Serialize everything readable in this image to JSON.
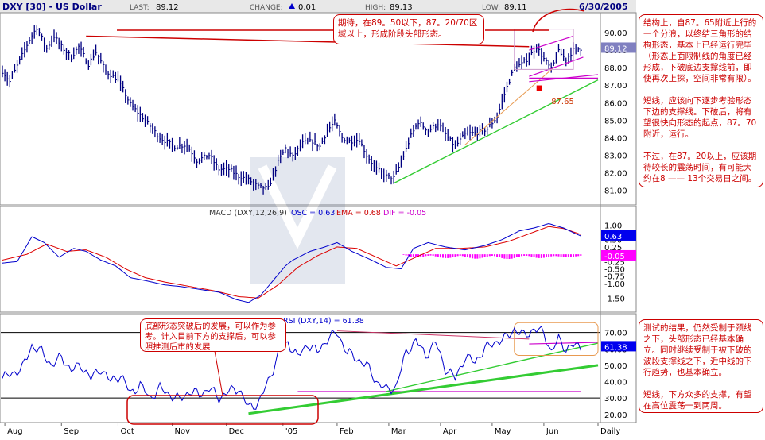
{
  "header": {
    "title": "DXY [30] - US Dollar",
    "last_label": "LAST:",
    "last_value": "89.12",
    "change_label": "CHANGE:",
    "change_value": "0.01",
    "high_label": "HIGH:",
    "high_value": "89.13",
    "low_label": "LOW:",
    "low_value": "89.11",
    "date": "6/30/2005"
  },
  "notes": {
    "top_callout": "期待，在89。50以下，87。20/70区域以上，形成阶段头部形态。",
    "right_top": "结构上，自87。65附近上行的一个分浪，以终结三角形的结构形态，基本上已经运行完毕（形态上面限制线的角度已经形成，下破底边支撑线前，即使再次上探，空间非常有限）。\n\n短线，应该向下逐步考验形态下边的支撑线。下破后，将有望很快向形态的起点，87。70附近，运行。\n\n不过，在87。20以上，应该期待较长的震荡时间，有可能大约在8 —— 13个交易日之间。",
    "right_bottom": "测试的结果，仍然受制于颈线之下，头部形态已经基本确立。同时继续受制于被下破的波段支撑线之下，近中线的下行趋势，也基本确立。\n\n短线，下方众多的支撑，有望在高位震荡一到两周。",
    "rsi_callout": "底部形态突破后的发展，可以作为参考。计入目前下方的支撑后，可以参照推测后市的发展",
    "level_label": "87.65"
  },
  "chart_data": [
    {
      "type": "line",
      "name": "price",
      "title": "DXY [30] - US Dollar",
      "ylim": [
        80.3,
        91.0
      ],
      "y_ticks": [
        81.0,
        82.0,
        83.0,
        84.0,
        85.0,
        86.0,
        87.0,
        88.0,
        89.0,
        90.0
      ],
      "y_tick_labels": [
        "81.00",
        "82.00",
        "83.00",
        "84.00",
        "85.00",
        "86.00",
        "87.00",
        "88.00",
        "89.00",
        "90.00"
      ],
      "last_value": 89.12,
      "last_value_label": "89.12",
      "x_labels": [
        "Aug",
        "Sep",
        "Oct",
        "Nov",
        "Dec",
        "'05",
        "Feb",
        "Mar",
        "Apr",
        "May",
        "Jun",
        "Daily"
      ],
      "x_label_positions": [
        1,
        24,
        47,
        69,
        91,
        114,
        136,
        157,
        178,
        199,
        220,
        242
      ],
      "bars": 235,
      "close_anchors": [
        [
          0,
          87.8
        ],
        [
          3,
          87.2
        ],
        [
          7,
          88.4
        ],
        [
          11,
          89.6
        ],
        [
          14,
          90.3
        ],
        [
          18,
          89.1
        ],
        [
          21,
          89.8
        ],
        [
          24,
          89.2
        ],
        [
          28,
          88.6
        ],
        [
          31,
          89.2
        ],
        [
          35,
          88.2
        ],
        [
          38,
          88.9
        ],
        [
          42,
          87.8
        ],
        [
          47,
          87.3
        ],
        [
          52,
          85.9
        ],
        [
          58,
          85.0
        ],
        [
          64,
          84.0
        ],
        [
          70,
          83.5
        ],
        [
          75,
          83.6
        ],
        [
          79,
          82.7
        ],
        [
          84,
          83.0
        ],
        [
          88,
          82.2
        ],
        [
          92,
          82.2
        ],
        [
          96,
          81.8
        ],
        [
          100,
          81.6
        ],
        [
          104,
          81.2
        ],
        [
          108,
          81.1
        ],
        [
          112,
          82.6
        ],
        [
          115,
          83.4
        ],
        [
          118,
          82.9
        ],
        [
          122,
          83.7
        ],
        [
          126,
          83.8
        ],
        [
          129,
          83.5
        ],
        [
          132,
          84.4
        ],
        [
          135,
          84.9
        ],
        [
          138,
          84.0
        ],
        [
          141,
          83.8
        ],
        [
          145,
          83.9
        ],
        [
          148,
          83.0
        ],
        [
          152,
          82.2
        ],
        [
          156,
          81.8
        ],
        [
          159,
          81.7
        ],
        [
          162,
          82.6
        ],
        [
          166,
          84.1
        ],
        [
          169,
          84.9
        ],
        [
          173,
          84.4
        ],
        [
          177,
          84.8
        ],
        [
          181,
          84.0
        ],
        [
          184,
          83.5
        ],
        [
          188,
          84.2
        ],
        [
          193,
          84.3
        ],
        [
          197,
          84.5
        ],
        [
          201,
          85.2
        ],
        [
          205,
          86.9
        ],
        [
          208,
          88.0
        ],
        [
          211,
          88.2
        ],
        [
          214,
          88.6
        ],
        [
          217,
          89.2
        ],
        [
          220,
          88.5
        ],
        [
          223,
          87.9
        ],
        [
          226,
          88.9
        ],
        [
          229,
          88.5
        ],
        [
          232,
          89.0
        ],
        [
          235,
          89.1
        ]
      ],
      "lines": {
        "neckline": [
          [
            34,
            89.8
          ],
          [
            214,
            89.2
          ]
        ],
        "uptrend": [
          [
            159,
            81.4
          ],
          [
            242,
            87.3
          ]
        ],
        "tri_upper": [
          [
            214,
            89.0
          ],
          [
            232,
            89.8
          ]
        ],
        "tri_lower": [
          [
            214,
            87.5
          ],
          [
            236,
            88.6
          ]
        ],
        "support_a": [
          [
            214,
            87.4
          ],
          [
            242,
            87.4
          ]
        ],
        "support_b": [
          [
            214,
            87.2
          ],
          [
            242,
            87.6
          ]
        ],
        "orange_line": [
          [
            188,
            83.6
          ],
          [
            224,
            88.0
          ]
        ],
        "square_marker": [
          218,
          86.85
        ],
        "level_label_position": [
          223,
          86.1
        ]
      }
    },
    {
      "type": "line",
      "name": "macd",
      "title": "MACD (DXY,12,26,9)",
      "osc_label": "OSC = 0.63",
      "ema_label": "EMA = 0.68",
      "dif_label": "DIF = -0.05",
      "ylim": [
        -1.9,
        1.2
      ],
      "y_ticks": [
        1.0,
        0.75,
        0.5,
        0.25,
        -0.25,
        -0.5,
        -0.75,
        -1.0,
        -1.5
      ],
      "y_tick_labels": [
        "1.00",
        "0.75",
        "0.50",
        "0.25",
        "-0.25",
        "-0.50",
        "-0.75",
        "-1.00",
        "-1.50"
      ],
      "osc_last": 0.63,
      "dif_last": -0.05,
      "osc_anchors": [
        [
          0,
          -0.3
        ],
        [
          6,
          -0.25
        ],
        [
          12,
          0.6
        ],
        [
          17,
          0.4
        ],
        [
          23,
          -0.1
        ],
        [
          29,
          0.2
        ],
        [
          34,
          0.1
        ],
        [
          40,
          -0.2
        ],
        [
          46,
          -0.4
        ],
        [
          52,
          -0.8
        ],
        [
          58,
          -0.9
        ],
        [
          66,
          -1.05
        ],
        [
          72,
          -1.1
        ],
        [
          80,
          -1.2
        ],
        [
          88,
          -1.3
        ],
        [
          95,
          -1.55
        ],
        [
          100,
          -1.65
        ],
        [
          105,
          -1.4
        ],
        [
          110,
          -0.9
        ],
        [
          115,
          -0.4
        ],
        [
          118,
          -0.2
        ],
        [
          125,
          0.1
        ],
        [
          131,
          0.25
        ],
        [
          136,
          0.4
        ],
        [
          142,
          0.1
        ],
        [
          150,
          -0.2
        ],
        [
          156,
          -0.45
        ],
        [
          162,
          -0.5
        ],
        [
          167,
          0.2
        ],
        [
          173,
          0.4
        ],
        [
          180,
          0.25
        ],
        [
          188,
          0.15
        ],
        [
          196,
          0.3
        ],
        [
          203,
          0.5
        ],
        [
          210,
          0.8
        ],
        [
          216,
          0.9
        ],
        [
          222,
          1.05
        ],
        [
          228,
          0.9
        ],
        [
          233,
          0.7
        ],
        [
          235,
          0.63
        ]
      ],
      "ema_anchors": [
        [
          0,
          -0.2
        ],
        [
          10,
          0.0
        ],
        [
          18,
          0.35
        ],
        [
          26,
          0.1
        ],
        [
          34,
          0.15
        ],
        [
          42,
          -0.1
        ],
        [
          50,
          -0.5
        ],
        [
          58,
          -0.8
        ],
        [
          66,
          -0.95
        ],
        [
          76,
          -1.1
        ],
        [
          86,
          -1.25
        ],
        [
          96,
          -1.45
        ],
        [
          104,
          -1.5
        ],
        [
          112,
          -1.05
        ],
        [
          120,
          -0.45
        ],
        [
          128,
          -0.05
        ],
        [
          136,
          0.25
        ],
        [
          144,
          0.2
        ],
        [
          152,
          -0.1
        ],
        [
          160,
          -0.4
        ],
        [
          168,
          -0.1
        ],
        [
          176,
          0.2
        ],
        [
          186,
          0.2
        ],
        [
          196,
          0.25
        ],
        [
          206,
          0.45
        ],
        [
          214,
          0.7
        ],
        [
          222,
          0.95
        ],
        [
          228,
          0.88
        ],
        [
          235,
          0.68
        ]
      ],
      "dif_values": [
        -0.02,
        -0.04,
        -0.06,
        -0.08,
        -0.09,
        -0.1,
        -0.1,
        -0.09,
        -0.08,
        -0.06,
        -0.05,
        -0.04,
        -0.05,
        -0.07,
        -0.09,
        -0.11,
        -0.12,
        -0.13,
        -0.13,
        -0.12,
        -0.1,
        -0.08,
        -0.06,
        -0.05,
        -0.06,
        -0.08,
        -0.1,
        -0.12,
        -0.14,
        -0.15,
        -0.15,
        -0.14,
        -0.12,
        -0.1,
        -0.08,
        -0.06,
        -0.05,
        -0.06,
        -0.08,
        -0.1,
        -0.13,
        -0.15,
        -0.16,
        -0.16,
        -0.15,
        -0.13,
        -0.1,
        -0.08,
        -0.06,
        -0.05,
        -0.05,
        -0.06,
        -0.08,
        -0.1,
        -0.12,
        -0.13,
        -0.13,
        -0.12,
        -0.1,
        -0.08,
        -0.07,
        -0.06,
        -0.06,
        -0.07,
        -0.08,
        -0.09,
        -0.1,
        -0.1,
        -0.09,
        -0.08,
        -0.07,
        -0.06,
        -0.05
      ],
      "dif_start": 163
    },
    {
      "type": "line",
      "name": "rsi",
      "title": "RSI (DXY,14)",
      "value_label": "RSI (DXY,14) = 61.38",
      "ylim": [
        16,
        80
      ],
      "y_ticks": [
        70,
        60,
        50,
        40,
        30,
        20
      ],
      "y_tick_labels": [
        "70.00",
        "60.00",
        "50.00",
        "40.00",
        "30.00",
        "20.00"
      ],
      "last_value": 61.38,
      "last_value_label": "61.38",
      "hlines": [
        70,
        30
      ],
      "rsi_anchors": [
        [
          0,
          42
        ],
        [
          4,
          45
        ],
        [
          8,
          48
        ],
        [
          12,
          62
        ],
        [
          16,
          58
        ],
        [
          20,
          50
        ],
        [
          24,
          55
        ],
        [
          28,
          47
        ],
        [
          32,
          50
        ],
        [
          36,
          42
        ],
        [
          40,
          48
        ],
        [
          44,
          40
        ],
        [
          48,
          44
        ],
        [
          52,
          33
        ],
        [
          56,
          38
        ],
        [
          60,
          30
        ],
        [
          64,
          36
        ],
        [
          68,
          32
        ],
        [
          72,
          29
        ],
        [
          76,
          34
        ],
        [
          80,
          32
        ],
        [
          84,
          36
        ],
        [
          88,
          30
        ],
        [
          92,
          34
        ],
        [
          96,
          36
        ],
        [
          100,
          24
        ],
        [
          104,
          27
        ],
        [
          108,
          40
        ],
        [
          112,
          56
        ],
        [
          116,
          64
        ],
        [
          120,
          55
        ],
        [
          124,
          63
        ],
        [
          128,
          58
        ],
        [
          132,
          66
        ],
        [
          136,
          70
        ],
        [
          140,
          58
        ],
        [
          144,
          54
        ],
        [
          148,
          50
        ],
        [
          152,
          40
        ],
        [
          156,
          35
        ],
        [
          160,
          37
        ],
        [
          164,
          58
        ],
        [
          168,
          65
        ],
        [
          172,
          56
        ],
        [
          176,
          64
        ],
        [
          180,
          48
        ],
        [
          184,
          42
        ],
        [
          188,
          55
        ],
        [
          192,
          52
        ],
        [
          196,
          60
        ],
        [
          200,
          64
        ],
        [
          204,
          66
        ],
        [
          208,
          72
        ],
        [
          212,
          68
        ],
        [
          216,
          72
        ],
        [
          220,
          70
        ],
        [
          223,
          58
        ],
        [
          226,
          66
        ],
        [
          229,
          60
        ],
        [
          232,
          62
        ],
        [
          235,
          61.4
        ]
      ],
      "lines": {
        "pink_upper": [
          [
            136,
            71
          ],
          [
            214,
            66
          ]
        ],
        "pink_level": [
          [
            214,
            63
          ],
          [
            242,
            64
          ]
        ],
        "pink_lower": [
          [
            120,
            34
          ],
          [
            235,
            34
          ]
        ],
        "green_upper": [
          [
            156,
            34
          ],
          [
            242,
            63.5
          ]
        ],
        "green_lower": [
          [
            100,
            20.5
          ],
          [
            242,
            50
          ]
        ],
        "orange_box": [
          [
            208,
            76
          ],
          [
            242,
            56
          ]
        ]
      }
    }
  ]
}
